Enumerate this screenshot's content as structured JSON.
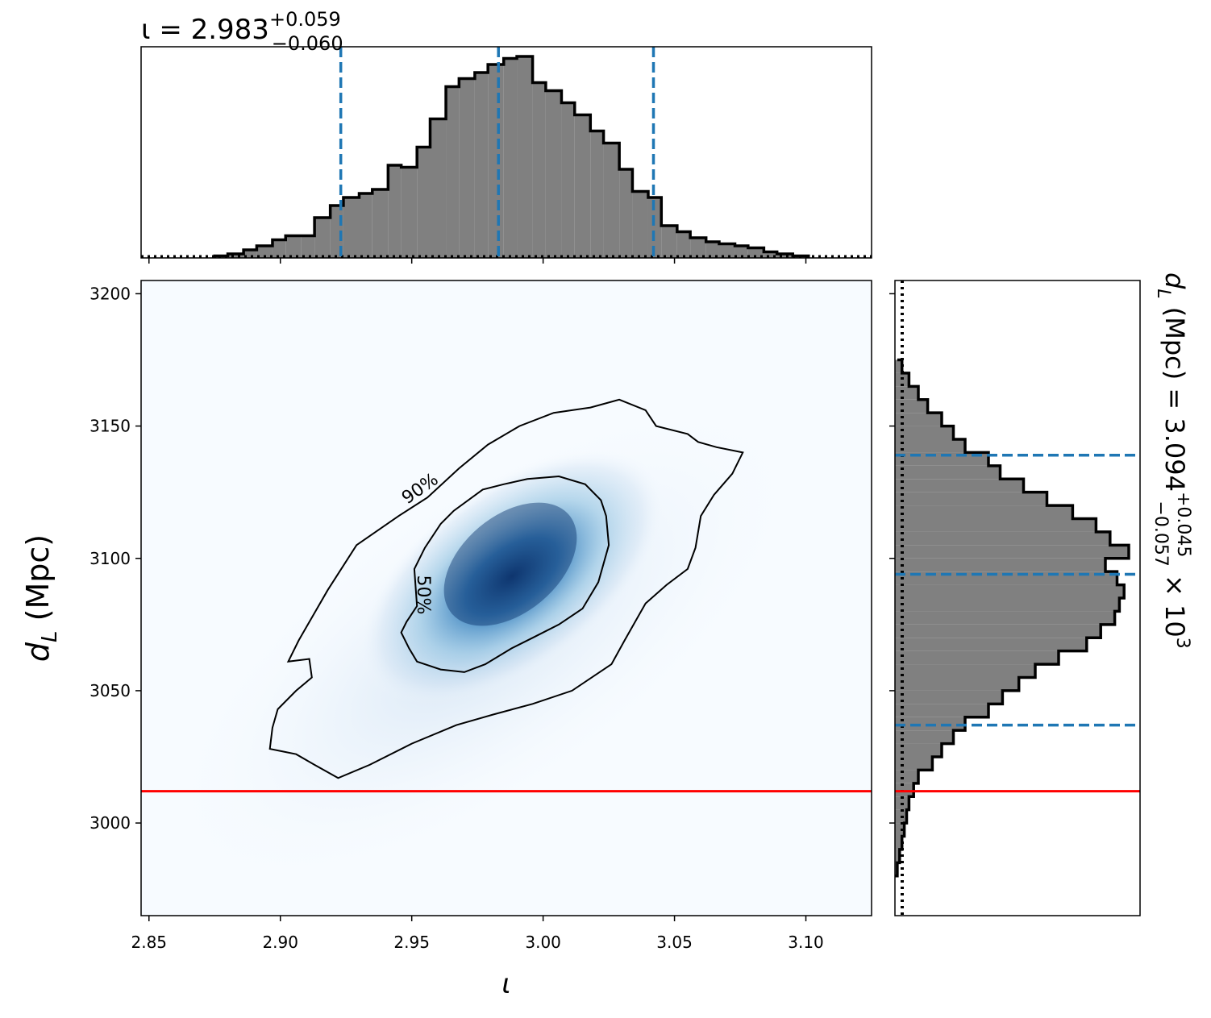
{
  "colors": {
    "hist_fill": "#808080",
    "hist_edge": "#000000",
    "quantile_line": "#1f77b4",
    "truth_line": "#ff0000",
    "density_cmap_low": "#f7fbff",
    "density_cmap_high": "#08306b"
  },
  "chart_data": [
    {
      "type": "histogram",
      "panel": "top-marginal",
      "title_prefix": "ι = 2.983",
      "title_sup": "+0.059",
      "title_sub": "−0.060",
      "xlim": [
        2.847,
        3.125
      ],
      "x_ticks": [
        2.85,
        2.9,
        2.95,
        3.0,
        3.05,
        3.1
      ],
      "bins": [
        2.875,
        2.88,
        2.886,
        2.891,
        2.897,
        2.902,
        2.908,
        2.913,
        2.919,
        2.924,
        2.93,
        2.935,
        2.941,
        2.946,
        2.952,
        2.957,
        2.963,
        2.968,
        2.974,
        2.979,
        2.985,
        2.99,
        2.996,
        3.001,
        3.007,
        3.012,
        3.018,
        3.023,
        3.029,
        3.034,
        3.04,
        3.045,
        3.051,
        3.056,
        3.062,
        3.067,
        3.073,
        3.078,
        3.084,
        3.089,
        3.095,
        3.101
      ],
      "counts": [
        1,
        2,
        4,
        6,
        9,
        11,
        11,
        20,
        26,
        30,
        32,
        34,
        46,
        45,
        55,
        69,
        85,
        89,
        92,
        96,
        99,
        100,
        87,
        83,
        77,
        71,
        63,
        57,
        44,
        33,
        30,
        16,
        13,
        10,
        8,
        7,
        6,
        5,
        3,
        2,
        1
      ],
      "quantile_lines": [
        2.923,
        2.983,
        3.042
      ],
      "prior_dotted": true
    },
    {
      "type": "heatmap",
      "panel": "joint",
      "xlabel": "ι",
      "ylabel_main": "d",
      "ylabel_sub": "L",
      "ylabel_unit": "(Mpc)",
      "xlim": [
        2.847,
        3.125
      ],
      "ylim": [
        2965,
        3205
      ],
      "x_ticks": [
        2.85,
        2.9,
        2.95,
        3.0,
        3.05,
        3.1
      ],
      "y_ticks": [
        3000,
        3050,
        3100,
        3150,
        3200
      ],
      "density_center": [
        2.986,
        3099
      ],
      "truth_y": 3012,
      "contour_levels": [
        "50%",
        "90%"
      ],
      "contour_50": [
        [
          2.961,
          3113
        ],
        [
          2.966,
          3118
        ],
        [
          2.977,
          3126
        ],
        [
          2.985,
          3128
        ],
        [
          2.994,
          3130
        ],
        [
          3.006,
          3131
        ],
        [
          3.016,
          3128
        ],
        [
          3.022,
          3122
        ],
        [
          3.024,
          3116
        ],
        [
          3.025,
          3105
        ],
        [
          3.021,
          3091
        ],
        [
          3.015,
          3081
        ],
        [
          3.006,
          3075
        ],
        [
          2.996,
          3070
        ],
        [
          2.988,
          3066
        ],
        [
          2.978,
          3060
        ],
        [
          2.97,
          3057
        ],
        [
          2.961,
          3058
        ],
        [
          2.952,
          3061
        ],
        [
          2.949,
          3066
        ],
        [
          2.946,
          3072
        ],
        [
          2.948,
          3076
        ],
        [
          2.952,
          3082
        ],
        [
          2.951,
          3096
        ],
        [
          2.955,
          3104
        ]
      ],
      "contour_90": [
        [
          2.903,
          3061
        ],
        [
          2.907,
          3069
        ],
        [
          2.918,
          3088
        ],
        [
          2.929,
          3105
        ],
        [
          2.945,
          3116
        ],
        [
          2.956,
          3123
        ],
        [
          2.968,
          3134
        ],
        [
          2.979,
          3143
        ],
        [
          2.991,
          3150
        ],
        [
          3.004,
          3155
        ],
        [
          3.018,
          3157
        ],
        [
          3.029,
          3160
        ],
        [
          3.039,
          3156
        ],
        [
          3.043,
          3150
        ],
        [
          3.055,
          3147
        ],
        [
          3.059,
          3144
        ],
        [
          3.066,
          3142
        ],
        [
          3.076,
          3140
        ],
        [
          3.072,
          3132
        ],
        [
          3.065,
          3124
        ],
        [
          3.06,
          3116
        ],
        [
          3.058,
          3104
        ],
        [
          3.055,
          3096
        ],
        [
          3.047,
          3090
        ],
        [
          3.039,
          3083
        ],
        [
          3.031,
          3069
        ],
        [
          3.026,
          3060
        ],
        [
          3.011,
          3050
        ],
        [
          2.996,
          3045
        ],
        [
          2.981,
          3041
        ],
        [
          2.967,
          3037
        ],
        [
          2.95,
          3030
        ],
        [
          2.934,
          3022
        ],
        [
          2.922,
          3017
        ],
        [
          2.913,
          3022
        ],
        [
          2.906,
          3026
        ],
        [
          2.901,
          3027
        ],
        [
          2.896,
          3028
        ],
        [
          2.897,
          3036
        ],
        [
          2.899,
          3043
        ],
        [
          2.906,
          3050
        ],
        [
          2.912,
          3055
        ],
        [
          2.911,
          3062
        ]
      ]
    },
    {
      "type": "histogram",
      "panel": "right-marginal",
      "orientation": "horizontal",
      "title_prefix": "d",
      "title_sub_var": "L",
      "title_mid": " (Mpc) = 3.094",
      "title_sup": "+0.045",
      "title_sub": "−0.057",
      "title_suffix": " × 10",
      "title_exp": "3",
      "ylim": [
        2965,
        3205
      ],
      "y_ticks": [
        3000,
        3050,
        3100,
        3150,
        3200
      ],
      "bins": [
        2980,
        2985,
        2990,
        2995,
        3000,
        3005,
        3010,
        3015,
        3020,
        3025,
        3030,
        3035,
        3040,
        3045,
        3050,
        3055,
        3060,
        3065,
        3070,
        3075,
        3080,
        3085,
        3090,
        3095,
        3100,
        3105,
        3110,
        3115,
        3120,
        3125,
        3130,
        3135,
        3140,
        3145,
        3150,
        3155,
        3160,
        3165,
        3170,
        3175
      ],
      "counts": [
        1,
        2,
        3,
        4,
        5,
        6,
        8,
        10,
        16,
        20,
        25,
        30,
        40,
        46,
        53,
        60,
        70,
        82,
        88,
        94,
        96,
        98,
        95,
        90,
        100,
        92,
        86,
        76,
        65,
        55,
        45,
        40,
        30,
        25,
        20,
        14,
        10,
        6,
        3,
        1
      ],
      "quantile_lines": [
        3037,
        3094,
        3139
      ],
      "truth_y": 3012,
      "prior_dotted": true
    }
  ]
}
